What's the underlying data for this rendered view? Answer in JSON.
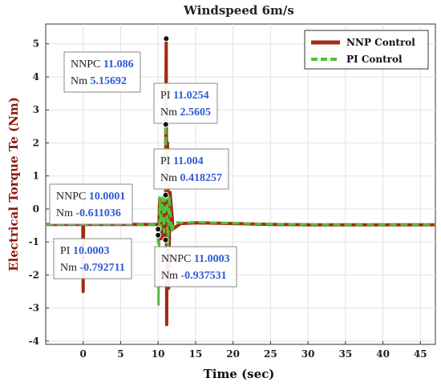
{
  "chart_data": {
    "type": "line",
    "title": "Windspeed 6m/s",
    "xlabel": "Time (sec)",
    "ylabel": "Electrical Torque Te (Nm)",
    "xlim": [
      -5,
      47
    ],
    "ylim": [
      -4.1,
      5.6
    ],
    "xticks": [
      0,
      5,
      10,
      15,
      20,
      25,
      30,
      35,
      40,
      45
    ],
    "yticks": [
      -4,
      -3,
      -2,
      -1,
      0,
      1,
      2,
      3,
      4,
      5
    ],
    "grid": true,
    "legend_position": "top-right",
    "series": [
      {
        "name": "NNP Control",
        "color": "#a32a14",
        "style": "solid",
        "x": [
          -5,
          -0.05,
          0,
          0.05,
          0.1,
          9.95,
          10,
          10.05,
          10.2,
          10.4,
          10.6,
          10.8,
          10.95,
          11,
          11.03,
          11.08,
          11.15,
          11.25,
          11.4,
          11.6,
          12,
          13,
          15,
          20,
          25,
          30,
          35,
          40,
          45,
          47
        ],
        "y": [
          -0.47,
          -0.47,
          -2.5,
          -0.47,
          -0.47,
          -0.47,
          -0.611036,
          -0.95,
          0.3,
          -0.9,
          0.2,
          -0.85,
          -0.5,
          -0.937531,
          2.5605,
          5.15692,
          -3.5,
          2.0,
          -2.4,
          0.5,
          -0.6,
          -0.44,
          -0.42,
          -0.44,
          -0.47,
          -0.48,
          -0.48,
          -0.48,
          -0.48,
          -0.48
        ]
      },
      {
        "name": "PI Control",
        "color": "#52c23a",
        "style": "dashed",
        "x": [
          -5,
          -0.05,
          0,
          0.05,
          0.1,
          9.95,
          10,
          10.05,
          10.2,
          10.4,
          10.6,
          10.8,
          10.95,
          11,
          11.02,
          11.06,
          11.15,
          11.3,
          11.5,
          11.8,
          12.2,
          13,
          15,
          20,
          25,
          30,
          35,
          40,
          45,
          47
        ],
        "y": [
          -0.47,
          -0.47,
          0.2,
          -0.47,
          -0.47,
          -0.47,
          -0.792711,
          -2.9,
          0.35,
          -0.6,
          0.35,
          -0.7,
          0.2,
          0.418257,
          2.5605,
          1.2,
          0.9,
          -1.2,
          0.4,
          -0.7,
          -0.4,
          -0.42,
          -0.4,
          -0.43,
          -0.46,
          -0.47,
          -0.48,
          -0.48,
          -0.48,
          -0.48
        ]
      }
    ],
    "annotations": [
      {
        "lines": [
          [
            "NNPC",
            "11.086"
          ],
          [
            "Nm",
            "5.15692"
          ]
        ],
        "x": 11.086,
        "y": 5.15692
      },
      {
        "lines": [
          [
            "PI",
            "11.0254"
          ],
          [
            "Nm",
            "2.5605"
          ]
        ],
        "x": 11.0254,
        "y": 2.5605
      },
      {
        "lines": [
          [
            "PI",
            "11.004"
          ],
          [
            "Nm",
            "0.418257"
          ]
        ],
        "x": 11.004,
        "y": 0.418257
      },
      {
        "lines": [
          [
            "NNPC",
            "10.0001"
          ],
          [
            "Nm",
            "-0.611036"
          ]
        ],
        "x": 10.0001,
        "y": -0.611036
      },
      {
        "lines": [
          [
            "PI",
            "10.0003"
          ],
          [
            "Nm",
            "-0.792711"
          ]
        ],
        "x": 10.0003,
        "y": -0.792711
      },
      {
        "lines": [
          [
            "NNPC",
            "11.0003"
          ],
          [
            "Nm",
            "-0.937531"
          ]
        ],
        "x": 11.0003,
        "y": -0.937531
      }
    ]
  }
}
